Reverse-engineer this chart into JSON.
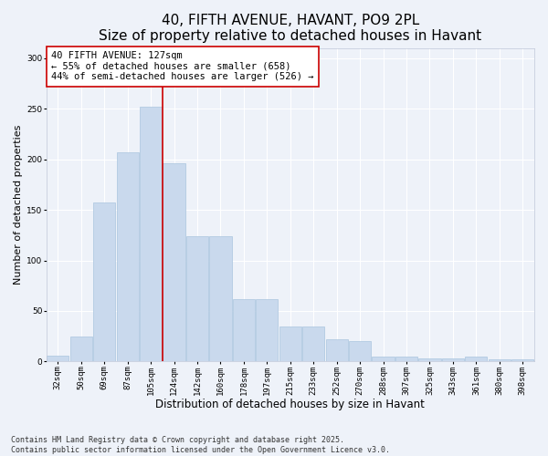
{
  "title": "40, FIFTH AVENUE, HAVANT, PO9 2PL",
  "subtitle": "Size of property relative to detached houses in Havant",
  "xlabel": "Distribution of detached houses by size in Havant",
  "ylabel": "Number of detached properties",
  "categories": [
    "32sqm",
    "50sqm",
    "69sqm",
    "87sqm",
    "105sqm",
    "124sqm",
    "142sqm",
    "160sqm",
    "178sqm",
    "197sqm",
    "215sqm",
    "233sqm",
    "252sqm",
    "270sqm",
    "288sqm",
    "307sqm",
    "325sqm",
    "343sqm",
    "361sqm",
    "380sqm",
    "398sqm"
  ],
  "values": [
    6,
    25,
    157,
    207,
    252,
    196,
    124,
    124,
    62,
    62,
    35,
    35,
    22,
    20,
    5,
    5,
    3,
    3,
    5,
    2,
    2
  ],
  "bar_color": "#c9d9ed",
  "bar_edge_color": "#aac4de",
  "annotation_text": "40 FIFTH AVENUE: 127sqm\n← 55% of detached houses are smaller (658)\n44% of semi-detached houses are larger (526) →",
  "annotation_box_color": "#ffffff",
  "annotation_box_edge_color": "#cc0000",
  "vline_color": "#cc0000",
  "vline_x": 5.0,
  "background_color": "#eef2f9",
  "grid_color": "#ffffff",
  "ylim": [
    0,
    310
  ],
  "yticks": [
    0,
    50,
    100,
    150,
    200,
    250,
    300
  ],
  "footer": "Contains HM Land Registry data © Crown copyright and database right 2025.\nContains public sector information licensed under the Open Government Licence v3.0.",
  "title_fontsize": 11,
  "xlabel_fontsize": 8.5,
  "ylabel_fontsize": 8,
  "tick_fontsize": 6.5,
  "annotation_fontsize": 7.5,
  "footer_fontsize": 6
}
